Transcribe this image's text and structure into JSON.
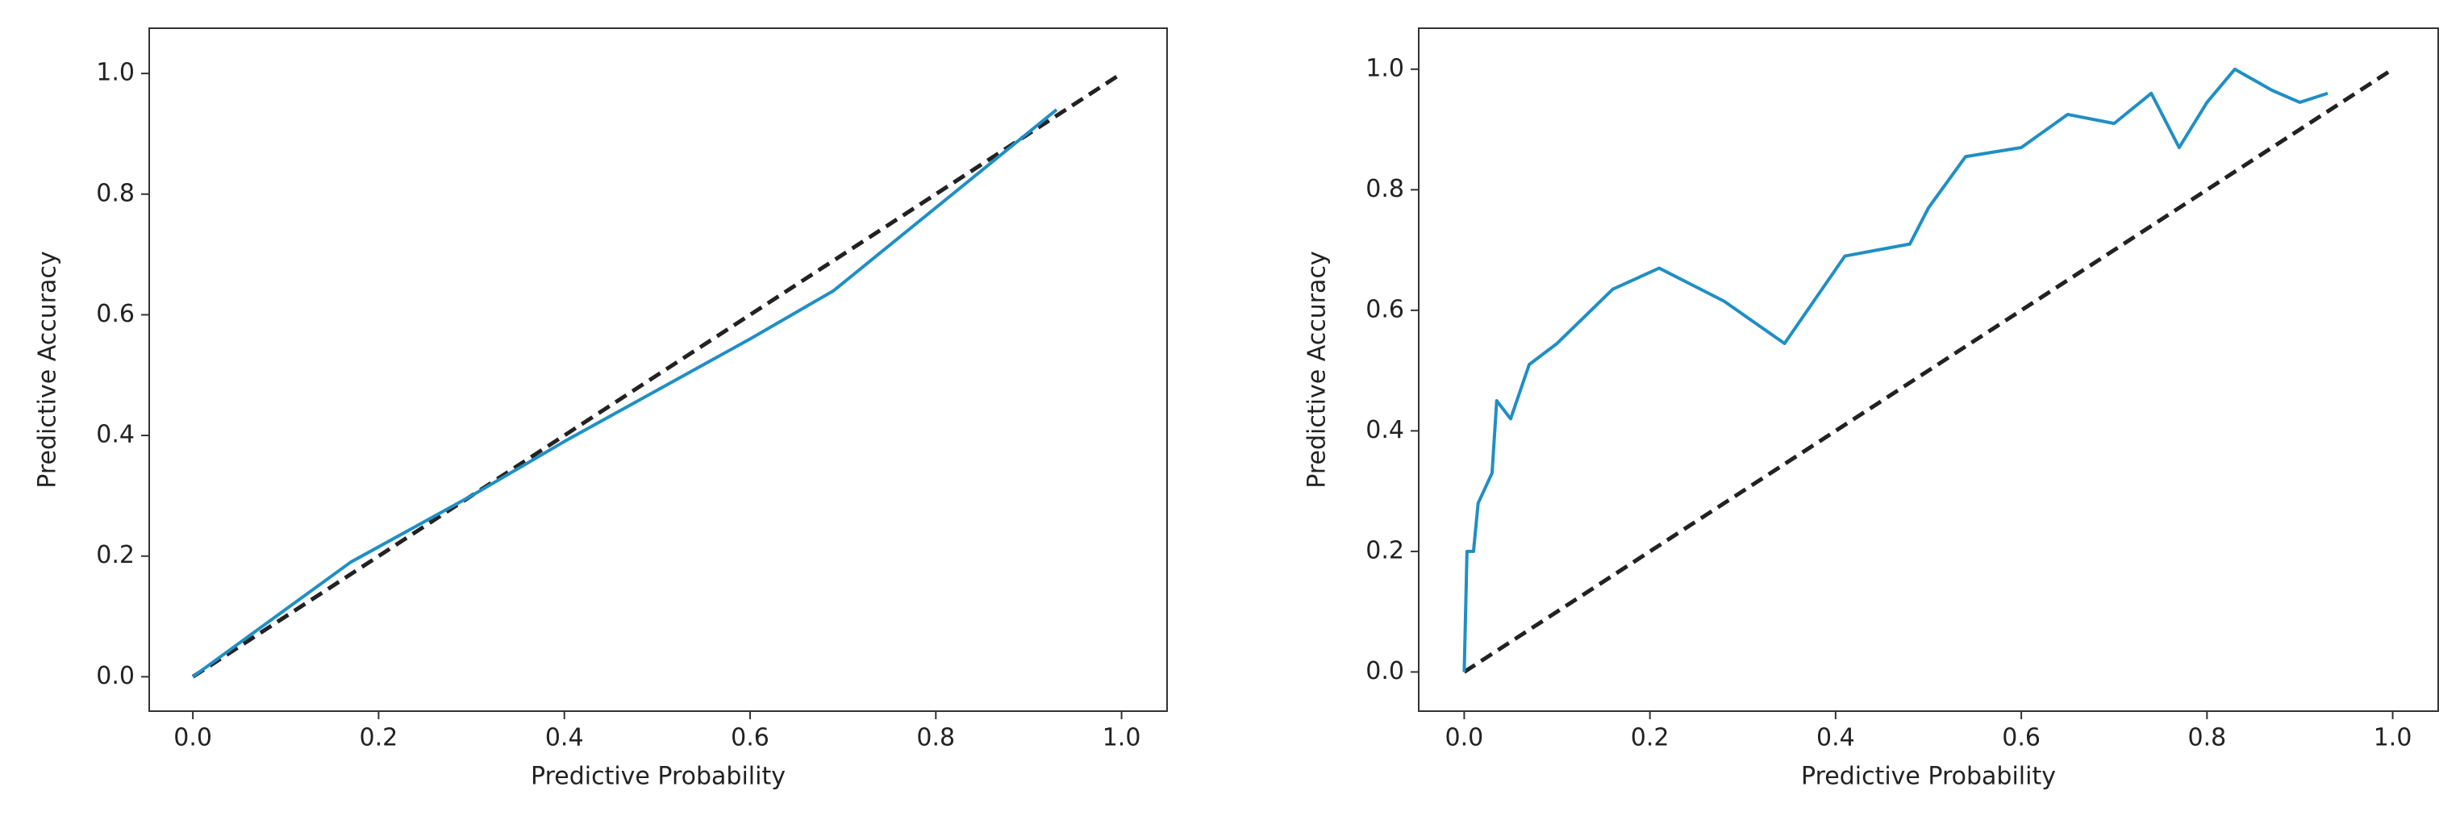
{
  "chart_data": [
    {
      "type": "line",
      "xlabel": "Predictive Probability",
      "ylabel": "Predictive Accuracy",
      "xlim": [
        -0.047,
        1.049
      ],
      "ylim": [
        -0.057,
        1.075
      ],
      "xticks": [
        {
          "value": 0,
          "label": "0.0"
        },
        0.2,
        0.4,
        0.6,
        0.8,
        {
          "value": 1,
          "label": "1.0"
        }
      ],
      "yticks": [
        {
          "value": 0,
          "label": "0.0"
        },
        0.2,
        0.4,
        0.6,
        0.8,
        {
          "value": 1,
          "label": "1.0"
        }
      ],
      "series": [
        {
          "color": "#222222",
          "linestyle": "dashed",
          "x": [
            0,
            1
          ],
          "values": [
            0,
            1
          ]
        },
        {
          "color": "#1f8fc4",
          "linestyle": "solid",
          "x": [
            0,
            0.17,
            0.3,
            0.4,
            0.6,
            0.69,
            0.93
          ],
          "values": [
            0,
            0.19,
            0.3,
            0.39,
            0.56,
            0.64,
            0.94
          ]
        }
      ]
    },
    {
      "type": "line",
      "xlabel": "Predictive Probability",
      "ylabel": "Predictive Accuracy",
      "xlim": [
        -0.049,
        1.049
      ],
      "ylim": [
        -0.065,
        1.068
      ],
      "xticks": [
        {
          "value": 0,
          "label": "0.0"
        },
        0.2,
        0.4,
        0.6,
        0.8,
        {
          "value": 1,
          "label": "1.0"
        }
      ],
      "yticks": [
        {
          "value": 0,
          "label": "0.0"
        },
        0.2,
        0.4,
        0.6,
        0.8,
        {
          "value": 1,
          "label": "1.0"
        }
      ],
      "series": [
        {
          "color": "#222222",
          "linestyle": "dashed",
          "x": [
            0,
            1
          ],
          "values": [
            0,
            1
          ]
        },
        {
          "color": "#1f8fc4",
          "linestyle": "solid",
          "x": [
            0,
            0.003,
            0.01,
            0.015,
            0.03,
            0.035,
            0.05,
            0.07,
            0.1,
            0.16,
            0.21,
            0.28,
            0.345,
            0.41,
            0.48,
            0.5,
            0.54,
            0.6,
            0.65,
            0.7,
            0.74,
            0.77,
            0.8,
            0.83,
            0.87,
            0.9,
            0.93
          ],
          "values": [
            0,
            0.2,
            0.2,
            0.28,
            0.33,
            0.45,
            0.42,
            0.51,
            0.545,
            0.635,
            0.67,
            0.615,
            0.545,
            0.69,
            0.71,
            0.77,
            0.855,
            0.87,
            0.925,
            0.91,
            0.96,
            0.87,
            0.945,
            1.0,
            0.965,
            0.945,
            0.96
          ]
        }
      ]
    }
  ]
}
